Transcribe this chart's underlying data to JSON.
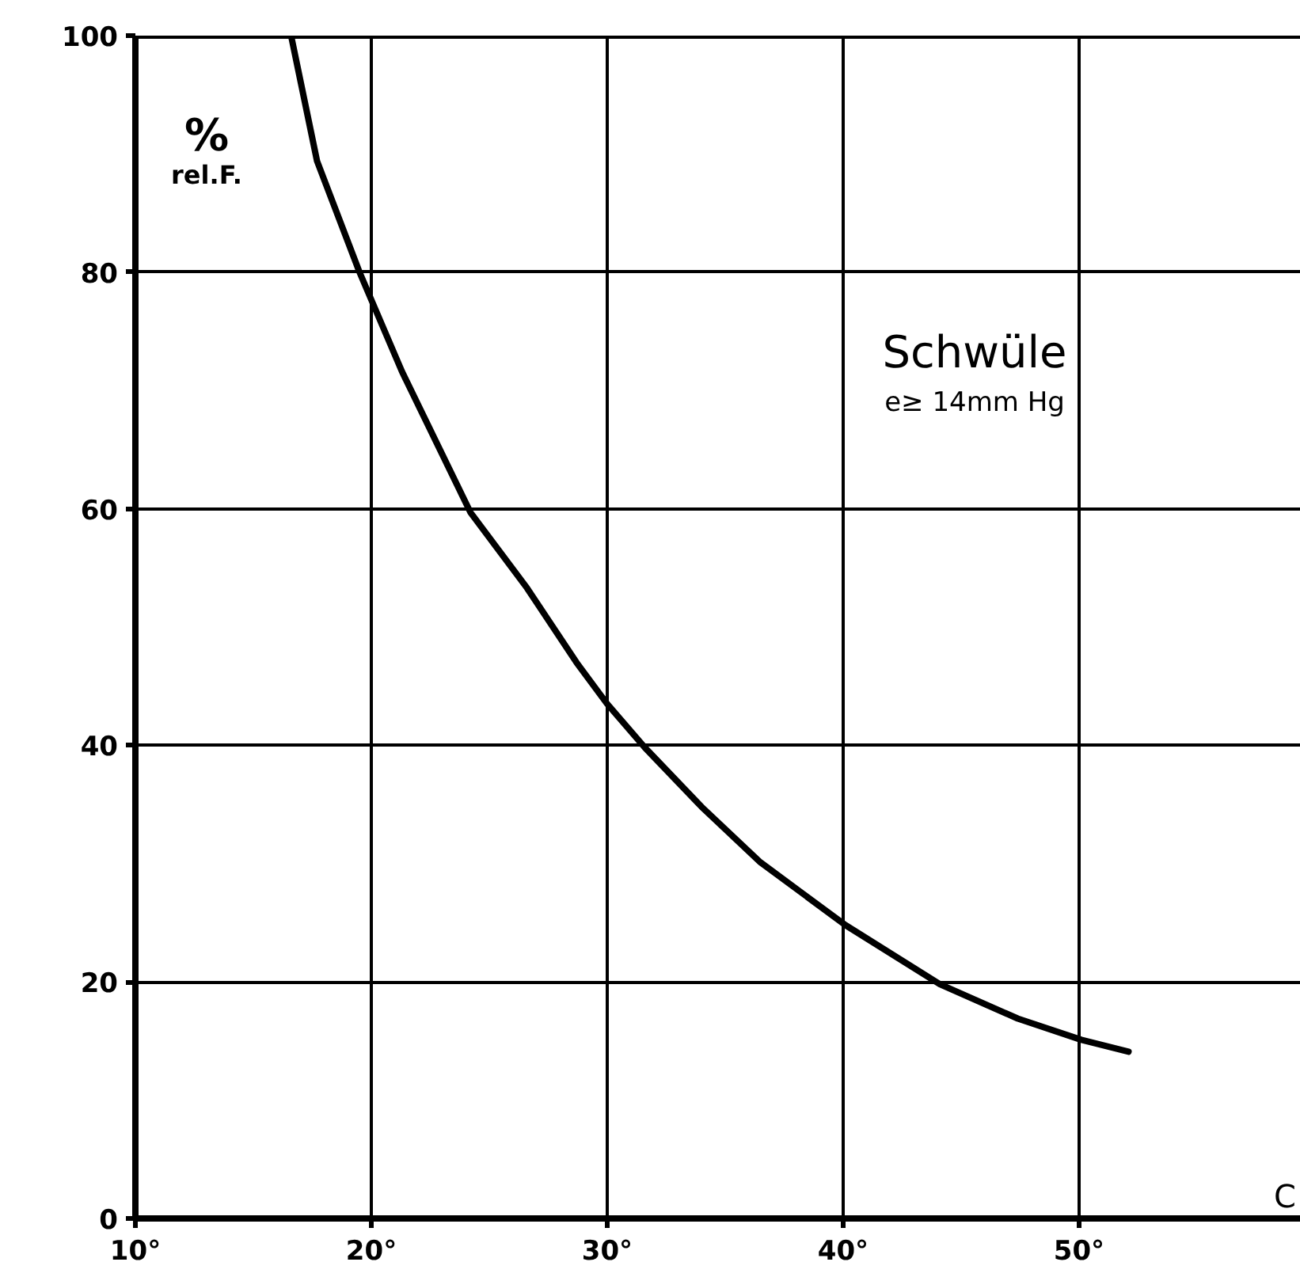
{
  "chart_data": {
    "type": "line",
    "xlabel": "C",
    "ylabel": "% rel.F.",
    "annotations": [
      "Schwüle",
      "e≥ 14mm Hg"
    ],
    "x": [
      16.6,
      17.7,
      19.5,
      21.3,
      24.2,
      26.6,
      28.7,
      30,
      31.6,
      34,
      36.5,
      40.1,
      44.1,
      47.4,
      50.1,
      52.1
    ],
    "series": [
      {
        "color": "#000000",
        "values": [
          100,
          89.4,
          80,
          71.6,
          59.7,
          53.3,
          47,
          43.5,
          39.8,
          34.8,
          30.1,
          24.8,
          19.8,
          16.9,
          15.1,
          14.1
        ]
      }
    ],
    "xlim": [
      10,
      59.4
    ],
    "ylim": [
      0,
      100
    ],
    "xticks": [
      {
        "value": 10,
        "label": "10°"
      },
      {
        "value": 20,
        "label": "20°"
      },
      {
        "value": 30,
        "label": "30°"
      },
      {
        "value": 40,
        "label": "40°"
      },
      {
        "value": 50,
        "label": "50°"
      }
    ],
    "yticks": [
      0,
      20,
      40,
      60,
      80,
      100
    ],
    "grid": true,
    "marker": "none",
    "line_style": "solid"
  }
}
